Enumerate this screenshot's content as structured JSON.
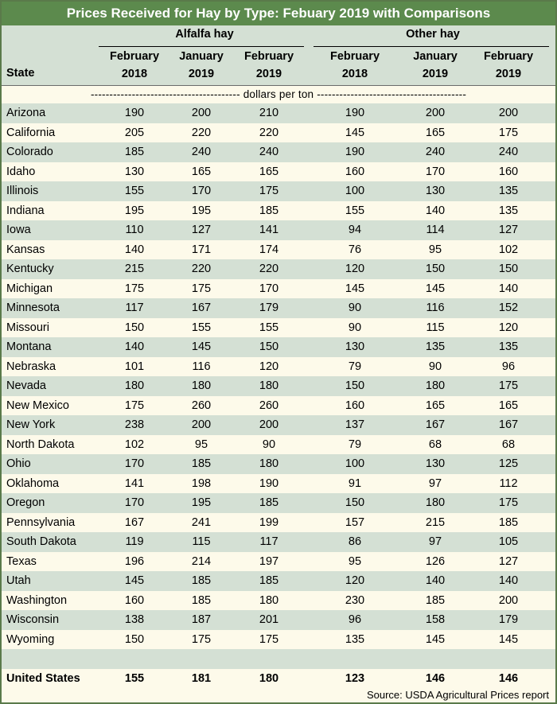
{
  "title": "Prices Received for Hay by Type: Febuary 2019 with Comparisons",
  "groups": {
    "alfalfa": "Alfalfa hay",
    "other": "Other hay"
  },
  "columns": [
    {
      "month": "February",
      "year": "2018"
    },
    {
      "month": "January",
      "year": "2019"
    },
    {
      "month": "February",
      "year": "2019"
    },
    {
      "month": "February",
      "year": "2018"
    },
    {
      "month": "January",
      "year": "2019"
    },
    {
      "month": "February",
      "year": "2019"
    }
  ],
  "state_header": "State",
  "units_label": "---------------------------------------- dollars per ton ----------------------------------------",
  "rows": [
    {
      "state": "Arizona",
      "values": [
        "190",
        "200",
        "210",
        "190",
        "200",
        "200"
      ]
    },
    {
      "state": "California",
      "values": [
        "205",
        "220",
        "220",
        "145",
        "165",
        "175"
      ]
    },
    {
      "state": "Colorado",
      "values": [
        "185",
        "240",
        "240",
        "190",
        "240",
        "240"
      ]
    },
    {
      "state": "Idaho",
      "values": [
        "130",
        "165",
        "165",
        "160",
        "170",
        "160"
      ]
    },
    {
      "state": "Illinois",
      "values": [
        "155",
        "170",
        "175",
        "100",
        "130",
        "135"
      ]
    },
    {
      "state": "Indiana",
      "values": [
        "195",
        "195",
        "185",
        "155",
        "140",
        "135"
      ]
    },
    {
      "state": "Iowa",
      "values": [
        "110",
        "127",
        "141",
        "94",
        "114",
        "127"
      ]
    },
    {
      "state": "Kansas",
      "values": [
        "140",
        "171",
        "174",
        "76",
        "95",
        "102"
      ]
    },
    {
      "state": "Kentucky",
      "values": [
        "215",
        "220",
        "220",
        "120",
        "150",
        "150"
      ]
    },
    {
      "state": "Michigan",
      "values": [
        "175",
        "175",
        "170",
        "145",
        "145",
        "140"
      ]
    },
    {
      "state": "Minnesota",
      "values": [
        "117",
        "167",
        "179",
        "90",
        "116",
        "152"
      ]
    },
    {
      "state": "Missouri",
      "values": [
        "150",
        "155",
        "155",
        "90",
        "115",
        "120"
      ]
    },
    {
      "state": "Montana",
      "values": [
        "140",
        "145",
        "150",
        "130",
        "135",
        "135"
      ]
    },
    {
      "state": "Nebraska",
      "values": [
        "101",
        "116",
        "120",
        "79",
        "90",
        "96"
      ]
    },
    {
      "state": "Nevada",
      "values": [
        "180",
        "180",
        "180",
        "150",
        "180",
        "175"
      ]
    },
    {
      "state": "New Mexico",
      "values": [
        "175",
        "260",
        "260",
        "160",
        "165",
        "165"
      ]
    },
    {
      "state": "New York",
      "values": [
        "238",
        "200",
        "200",
        "137",
        "167",
        "167"
      ]
    },
    {
      "state": "North Dakota",
      "values": [
        "102",
        "95",
        "90",
        "79",
        "68",
        "68"
      ]
    },
    {
      "state": "Ohio",
      "values": [
        "170",
        "185",
        "180",
        "100",
        "130",
        "125"
      ]
    },
    {
      "state": "Oklahoma",
      "values": [
        "141",
        "198",
        "190",
        "91",
        "97",
        "112"
      ]
    },
    {
      "state": "Oregon",
      "values": [
        "170",
        "195",
        "185",
        "150",
        "180",
        "175"
      ]
    },
    {
      "state": "Pennsylvania",
      "values": [
        "167",
        "241",
        "199",
        "157",
        "215",
        "185"
      ]
    },
    {
      "state": "South Dakota",
      "values": [
        "119",
        "115",
        "117",
        "86",
        "97",
        "105"
      ]
    },
    {
      "state": "Texas",
      "values": [
        "196",
        "214",
        "197",
        "95",
        "126",
        "127"
      ]
    },
    {
      "state": "Utah",
      "values": [
        "145",
        "185",
        "185",
        "120",
        "140",
        "140"
      ]
    },
    {
      "state": "Washington",
      "values": [
        "160",
        "185",
        "180",
        "230",
        "185",
        "200"
      ]
    },
    {
      "state": "Wisconsin",
      "values": [
        "138",
        "187",
        "201",
        "96",
        "158",
        "179"
      ]
    },
    {
      "state": "Wyoming",
      "values": [
        "150",
        "175",
        "175",
        "135",
        "145",
        "145"
      ]
    }
  ],
  "total": {
    "state": "United States",
    "values": [
      "155",
      "181",
      "180",
      "123",
      "146",
      "146"
    ]
  },
  "source": "Source: USDA Agricultural Prices report"
}
